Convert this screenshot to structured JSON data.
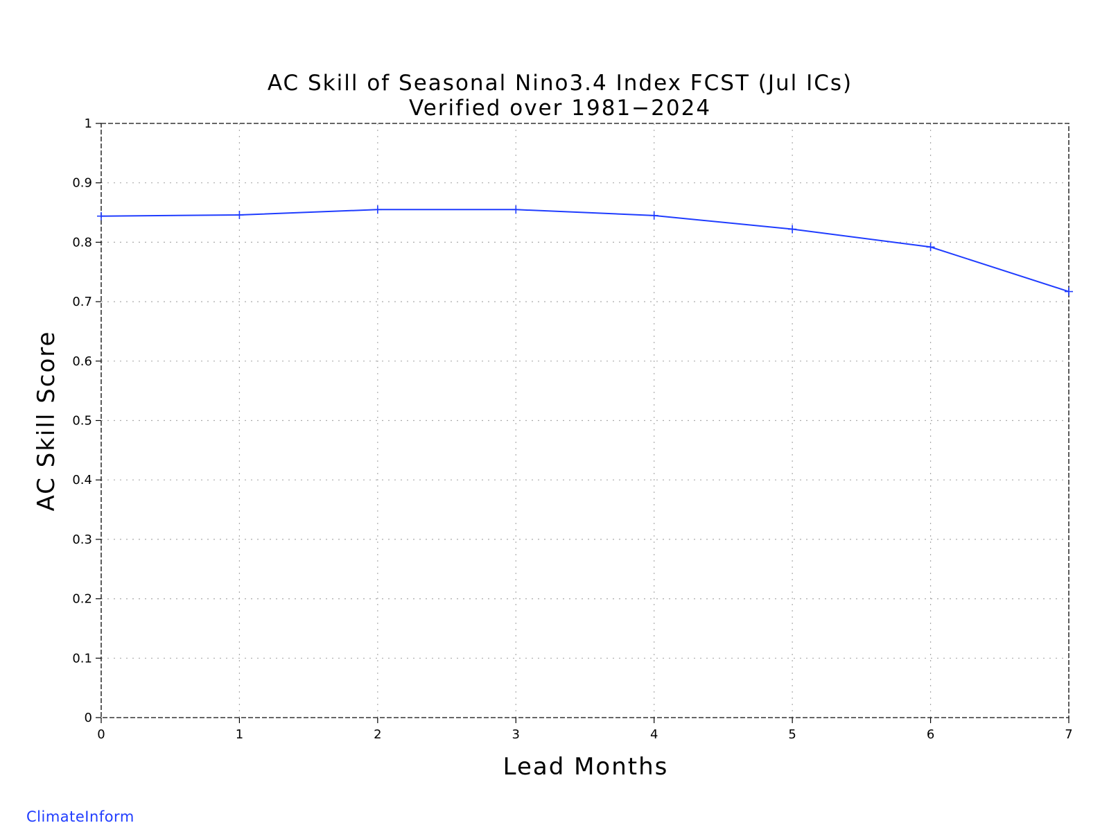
{
  "chart_data": {
    "type": "line",
    "title": "AC Skill of Seasonal Nino3.4 Index FCST (Jul ICs)",
    "subtitle": "Verified over 1981−2024",
    "xlabel": "Lead Months",
    "ylabel": "AC Skill Score",
    "x": [
      0,
      1,
      2,
      3,
      4,
      5,
      6,
      7
    ],
    "series": [
      {
        "values": [
          0.844,
          0.846,
          0.855,
          0.855,
          0.845,
          0.822,
          0.792,
          0.717
        ]
      }
    ],
    "xlim": [
      0,
      7
    ],
    "ylim": [
      0,
      1
    ],
    "xticks": [
      "0",
      "1",
      "2",
      "3",
      "4",
      "5",
      "6",
      "7"
    ],
    "yticks": [
      "0",
      "0.1",
      "0.2",
      "0.3",
      "0.4",
      "0.5",
      "0.6",
      "0.7",
      "0.8",
      "0.9",
      "1"
    ],
    "grid": true,
    "line_color": "#1f3cff",
    "marker": "plus"
  },
  "watermark": "ClimateInform"
}
